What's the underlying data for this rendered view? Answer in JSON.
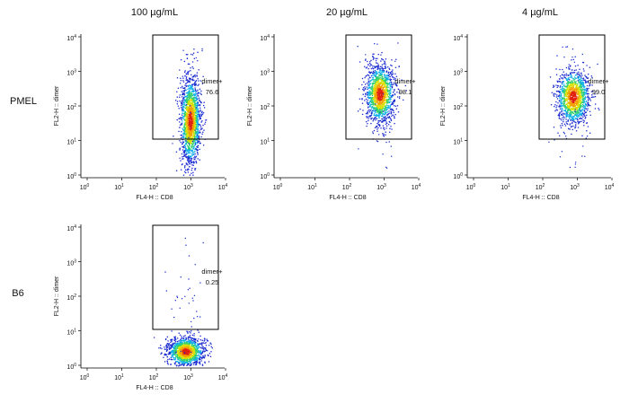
{
  "column_headers": [
    "100 µg/mL",
    "20 µg/mL",
    "4 µg/mL"
  ],
  "row_labels": [
    "PMEL",
    "B6"
  ],
  "tick_base": "10",
  "tick_exponents": [
    "0",
    "1",
    "2",
    "3",
    "4"
  ],
  "panels": [
    {
      "x_label": "FL4-H :: CD8",
      "y_label": "FL2-H :: dimer",
      "gate_name": "dimer+",
      "gate_value": "76.6"
    },
    {
      "x_label": "FL4-H :: CD8",
      "y_label": "FL2-H :: dimer",
      "gate_name": "dimer+",
      "gate_value": "98.1"
    },
    {
      "x_label": "FL4-H :: CD8",
      "y_label": "FL2-H :: dimer",
      "gate_name": "dimer+",
      "gate_value": "99.0"
    },
    {
      "x_label": "FL4-H :: CD8",
      "y_label": "FL2-H :: dimer",
      "gate_name": "dimer+",
      "gate_value": "0.25"
    }
  ]
}
